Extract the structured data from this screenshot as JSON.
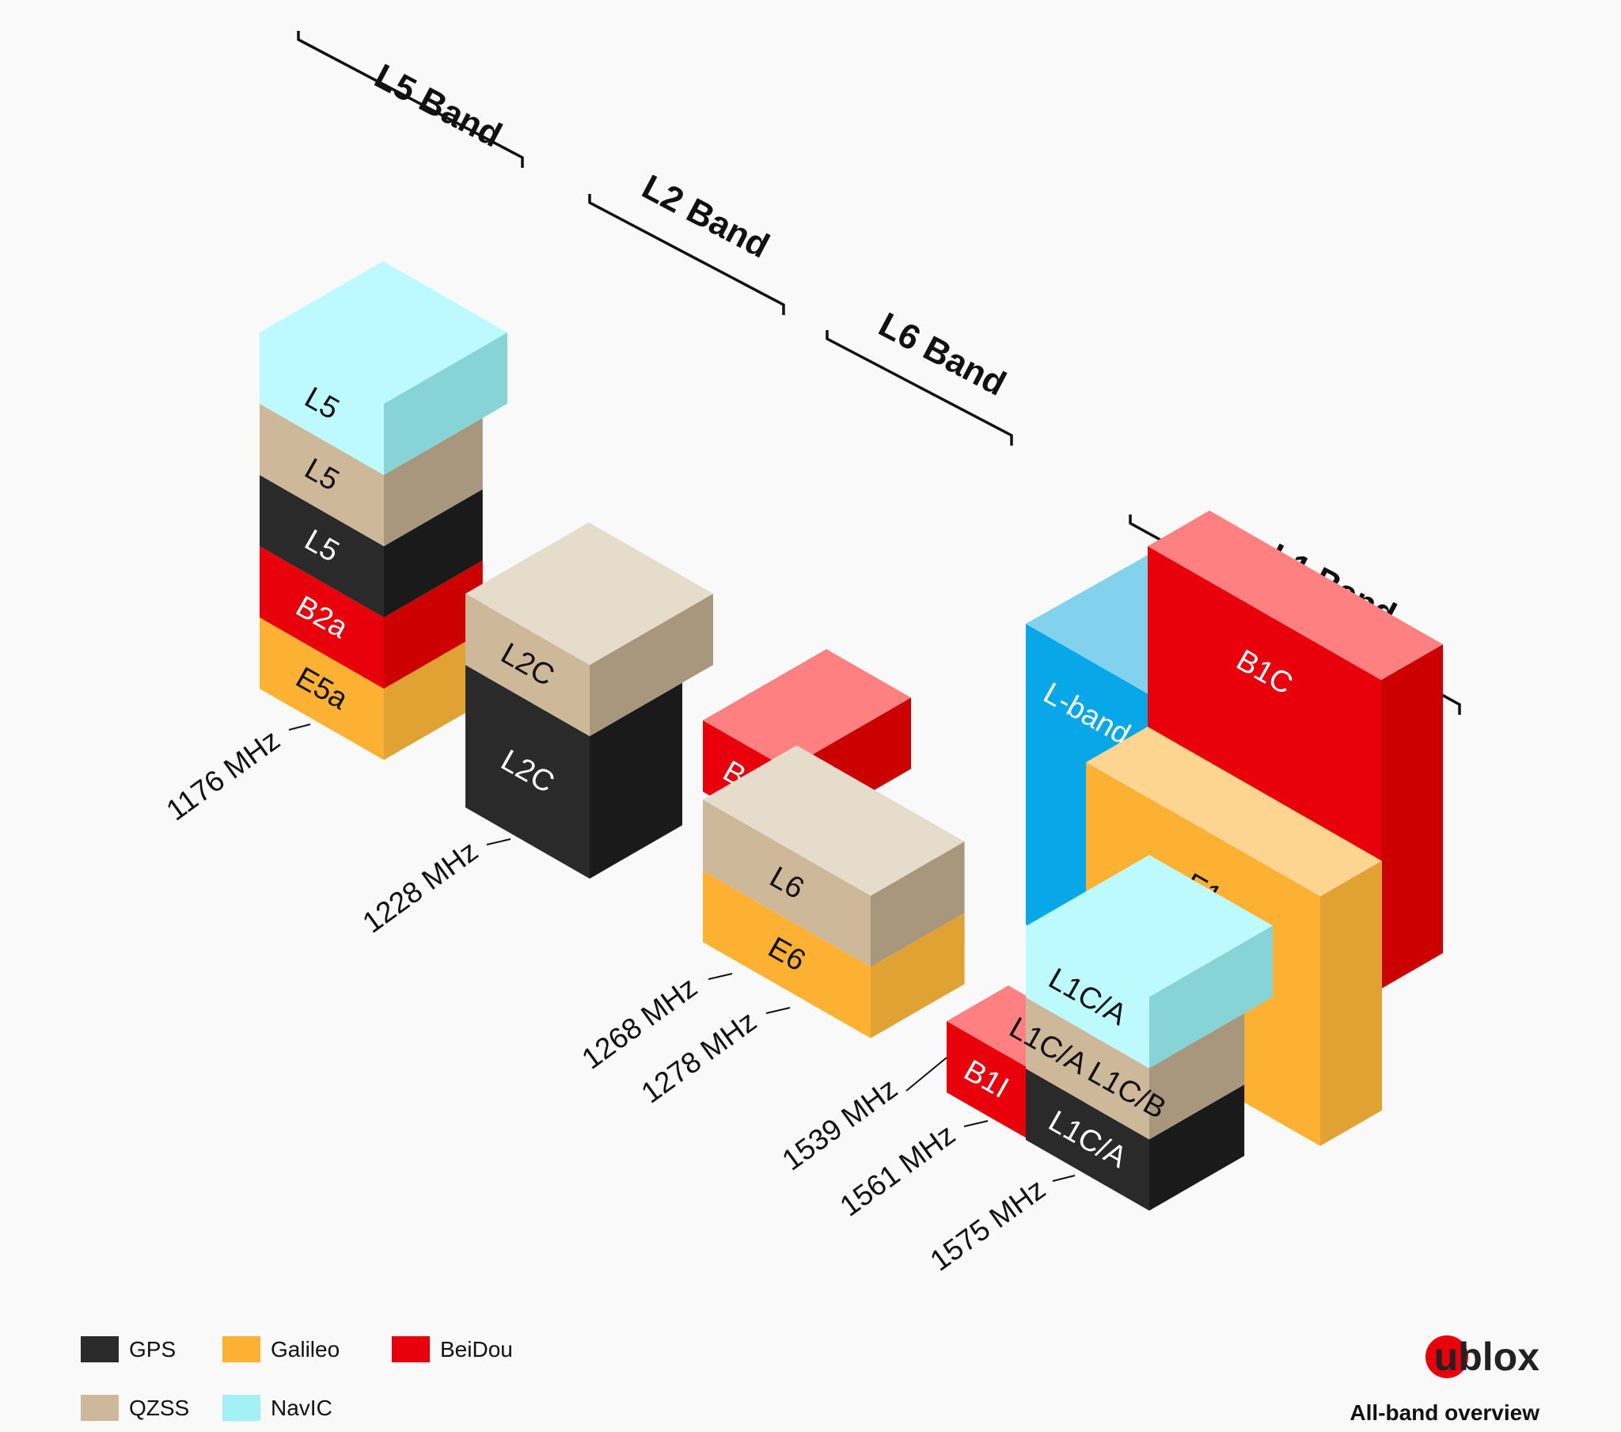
{
  "colors": {
    "GPS": {
      "front": "#2a2a2a",
      "top": "#3b3b3b",
      "side": "#1a1a1a",
      "text": "#ffffff"
    },
    "QZSS": {
      "front": "#cdb99a",
      "top": "#e6dccb",
      "side": "#a8977c",
      "text": "#111111"
    },
    "Galileo": {
      "front": "#fdb133",
      "top": "#fdd591",
      "side": "#e0a232",
      "text": "#111111"
    },
    "BeiDou": {
      "front": "#e8000b",
      "top": "#ff8080",
      "side": "#cc0000",
      "text": "#ffffff"
    },
    "NavIC": {
      "front": "#bdfaff",
      "top": "#bdfaff",
      "side": "#86d4d6",
      "text": "#111111"
    },
    "Lband": {
      "front": "#08a8e8",
      "top": "#82d2ee",
      "side": "#0890c8",
      "text": "#ffffff"
    }
  },
  "bands": [
    {
      "id": "l5",
      "label": "L5 Band"
    },
    {
      "id": "l2",
      "label": "L2 Band"
    },
    {
      "id": "l6",
      "label": "L6 Band"
    },
    {
      "id": "l1",
      "label": "L1 Band"
    }
  ],
  "frequencies": [
    "1176 MHz",
    "1228 MHz",
    "1268 MHz",
    "1278 MHz",
    "1539 MHz",
    "1561 MHz",
    "1575 MHz"
  ],
  "signals": {
    "l5_e5a": "E5a",
    "l5_b2a": "B2a",
    "l5_gps": "L5",
    "l5_qzss": "L5",
    "l5_navic": "L5",
    "l2_gps": "L2C",
    "l2_qzss": "L2C",
    "l6_e6": "E6",
    "l6_l6": "L6",
    "l6_b3i": "B3I",
    "l1_lband": "L-band",
    "l1_b1c": "B1C",
    "l1_e1": "E1",
    "l1_b1i": "B1I",
    "l1_gps": "L1C/A",
    "l1_qzss": "L1C/A L1C/B",
    "l1_navic": "L1C/A"
  },
  "legend": [
    {
      "system": "GPS",
      "label": "GPS",
      "color": "#2a2a2a"
    },
    {
      "system": "Galileo",
      "label": "Galileo",
      "color": "#fdb133"
    },
    {
      "system": "BeiDou",
      "label": "BeiDou",
      "color": "#e8000b"
    },
    {
      "system": "QZSS",
      "label": "QZSS",
      "color": "#cdb99a"
    },
    {
      "system": "NavIC",
      "label": "NavIC",
      "color": "#a3f0f5"
    }
  ],
  "brand": {
    "logo_text": "ublox",
    "caption": "All-band overview",
    "logo_color": "#e8000b"
  }
}
